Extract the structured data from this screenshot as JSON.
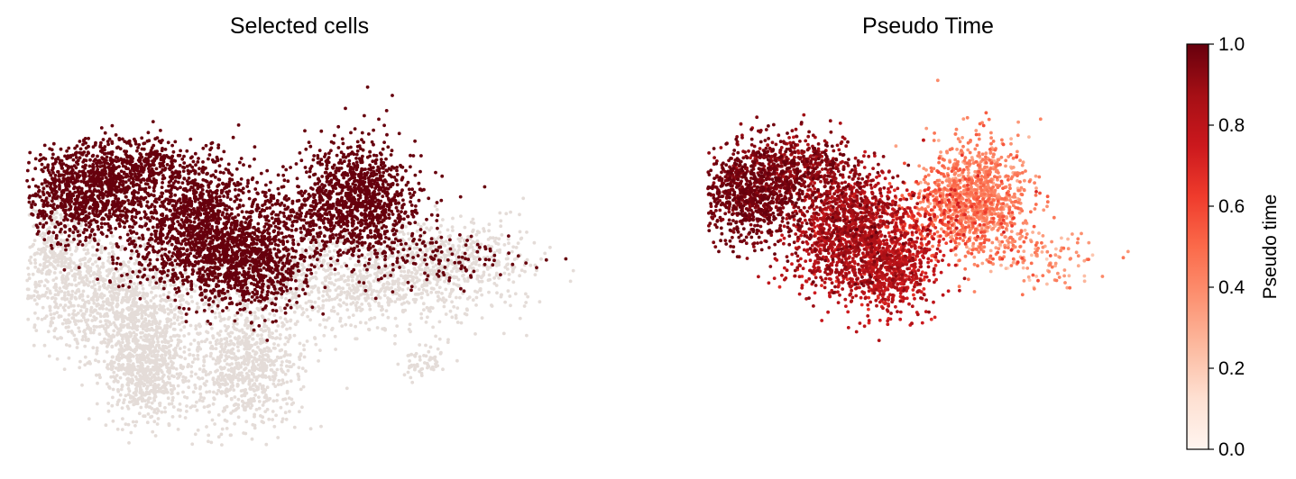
{
  "chart_data": [
    {
      "type": "scatter",
      "title": "Selected cells",
      "xlabel": "",
      "ylabel": "",
      "axes": "hidden",
      "grid": false,
      "colors": {
        "selected": "#67000d",
        "unselected": "#e4dcd8"
      },
      "clusters": [
        {
          "group": "unselected",
          "n": 1000,
          "cx": 0.15,
          "cy": 0.38,
          "sx": 0.075,
          "sy": 0.075
        },
        {
          "group": "unselected",
          "n": 800,
          "cx": 0.22,
          "cy": 0.2,
          "sx": 0.04,
          "sy": 0.075
        },
        {
          "group": "unselected",
          "n": 750,
          "cx": 0.4,
          "cy": 0.2,
          "sx": 0.05,
          "sy": 0.08
        },
        {
          "group": "unselected",
          "n": 1000,
          "cx": 0.58,
          "cy": 0.42,
          "sx": 0.13,
          "sy": 0.06
        },
        {
          "group": "unselected",
          "n": 400,
          "cx": 0.78,
          "cy": 0.48,
          "sx": 0.07,
          "sy": 0.05
        },
        {
          "group": "unselected",
          "n": 250,
          "cx": 0.05,
          "cy": 0.5,
          "sx": 0.03,
          "sy": 0.07
        },
        {
          "group": "unselected",
          "n": 60,
          "cx": 0.72,
          "cy": 0.22,
          "sx": 0.02,
          "sy": 0.025
        },
        {
          "group": "selected",
          "n": 850,
          "cx": 0.1,
          "cy": 0.64,
          "sx": 0.06,
          "sy": 0.06
        },
        {
          "group": "selected",
          "n": 500,
          "cx": 0.2,
          "cy": 0.71,
          "sx": 0.07,
          "sy": 0.04
        },
        {
          "group": "selected",
          "n": 900,
          "cx": 0.31,
          "cy": 0.58,
          "sx": 0.06,
          "sy": 0.07
        },
        {
          "group": "selected",
          "n": 700,
          "cx": 0.41,
          "cy": 0.46,
          "sx": 0.05,
          "sy": 0.06
        },
        {
          "group": "selected",
          "n": 350,
          "cx": 0.3,
          "cy": 0.47,
          "sx": 0.07,
          "sy": 0.05
        },
        {
          "group": "selected",
          "n": 1100,
          "cx": 0.6,
          "cy": 0.63,
          "sx": 0.055,
          "sy": 0.075
        },
        {
          "group": "selected",
          "n": 250,
          "cx": 0.48,
          "cy": 0.58,
          "sx": 0.07,
          "sy": 0.05
        },
        {
          "group": "selected",
          "n": 120,
          "cx": 0.75,
          "cy": 0.48,
          "sx": 0.07,
          "sy": 0.04
        }
      ]
    },
    {
      "type": "scatter",
      "title": "Pseudo Time",
      "xlabel": "",
      "ylabel": "",
      "axes": "hidden",
      "grid": false,
      "colorscale": "Reds",
      "clusters": [
        {
          "n": 850,
          "cx": 0.1,
          "cy": 0.64,
          "sx": 0.06,
          "sy": 0.06,
          "t": 0.97,
          "tsd": 0.03
        },
        {
          "n": 500,
          "cx": 0.2,
          "cy": 0.71,
          "sx": 0.07,
          "sy": 0.04,
          "t": 0.92,
          "tsd": 0.05
        },
        {
          "n": 900,
          "cx": 0.31,
          "cy": 0.58,
          "sx": 0.06,
          "sy": 0.07,
          "t": 0.85,
          "tsd": 0.06
        },
        {
          "n": 700,
          "cx": 0.41,
          "cy": 0.46,
          "sx": 0.05,
          "sy": 0.06,
          "t": 0.78,
          "tsd": 0.07
        },
        {
          "n": 350,
          "cx": 0.3,
          "cy": 0.47,
          "sx": 0.07,
          "sy": 0.05,
          "t": 0.82,
          "tsd": 0.07
        },
        {
          "n": 1100,
          "cx": 0.6,
          "cy": 0.63,
          "sx": 0.055,
          "sy": 0.075,
          "t": 0.42,
          "tsd": 0.08
        },
        {
          "n": 250,
          "cx": 0.48,
          "cy": 0.58,
          "sx": 0.07,
          "sy": 0.05,
          "t": 0.62,
          "tsd": 0.08
        },
        {
          "n": 120,
          "cx": 0.75,
          "cy": 0.48,
          "sx": 0.07,
          "sy": 0.04,
          "t": 0.35,
          "tsd": 0.1
        }
      ],
      "colorbar": {
        "label": "Pseudo time",
        "range": [
          0.0,
          1.0
        ],
        "ticks": [
          "0.0",
          "0.2",
          "0.4",
          "0.6",
          "0.8",
          "1.0"
        ],
        "tick_values": [
          0.0,
          0.2,
          0.4,
          0.6,
          0.8,
          1.0
        ]
      }
    }
  ],
  "colormap_reds": [
    "#fff5f0",
    "#fee0d2",
    "#fcbba1",
    "#fc9272",
    "#fb6a4a",
    "#ef3b2c",
    "#cb181d",
    "#a50f15",
    "#67000d"
  ]
}
